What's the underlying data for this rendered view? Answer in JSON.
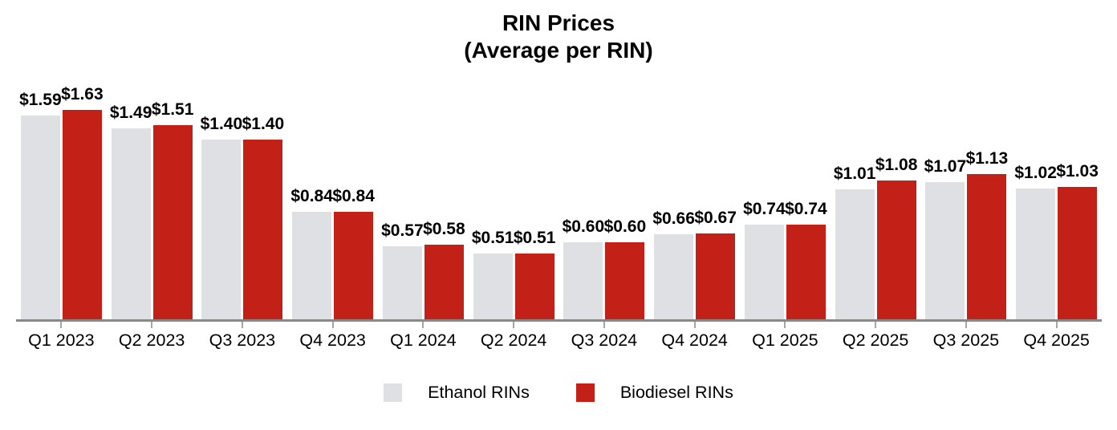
{
  "title": {
    "line1": "RIN Prices",
    "line2": "(Average per RIN)"
  },
  "colors": {
    "ethanol": "#dfe0e4",
    "biodiesel": "#c32117",
    "axis_line": "#898989",
    "tick": "#a6a6a6",
    "text": "#000000"
  },
  "legend": {
    "items": [
      {
        "label": "Ethanol RINs"
      },
      {
        "label": "Biodiesel RINs"
      }
    ]
  },
  "chart_data": {
    "type": "bar",
    "title": "RIN Prices (Average per RIN)",
    "categories": [
      "Q1 2023",
      "Q2 2023",
      "Q3 2023",
      "Q4 2023",
      "Q1 2024",
      "Q2 2024",
      "Q3 2024",
      "Q4 2024",
      "Q1 2025",
      "Q2 2025",
      "Q3 2025",
      "Q4 2025"
    ],
    "series": [
      {
        "name": "Ethanol RINs",
        "color": "#dfe0e4",
        "values": [
          1.59,
          1.49,
          1.4,
          0.84,
          0.57,
          0.51,
          0.6,
          0.66,
          0.74,
          1.01,
          1.07,
          1.02
        ],
        "labels": [
          "$1.59",
          "$1.49",
          "$1.40",
          "$0.84",
          "$0.57",
          "$0.51",
          "$0.60",
          "$0.66",
          "$0.74",
          "$1.01",
          "$1.07",
          "$1.02"
        ]
      },
      {
        "name": "Biodiesel RINs",
        "color": "#c32117",
        "values": [
          1.63,
          1.51,
          1.4,
          0.84,
          0.58,
          0.51,
          0.6,
          0.67,
          0.74,
          1.08,
          1.13,
          1.03
        ],
        "labels": [
          "$1.63",
          "$1.51",
          "$1.40",
          "$0.84",
          "$0.58",
          "$0.51",
          "$0.60",
          "$0.67",
          "$0.74",
          "$1.08",
          "$1.13",
          "$1.03"
        ]
      }
    ],
    "xlabel": "",
    "ylabel": "",
    "ylim": [
      0,
      2.49
    ],
    "grid": false,
    "y_axis_shown": false,
    "legend_position": "bottom",
    "data_labels": true
  }
}
